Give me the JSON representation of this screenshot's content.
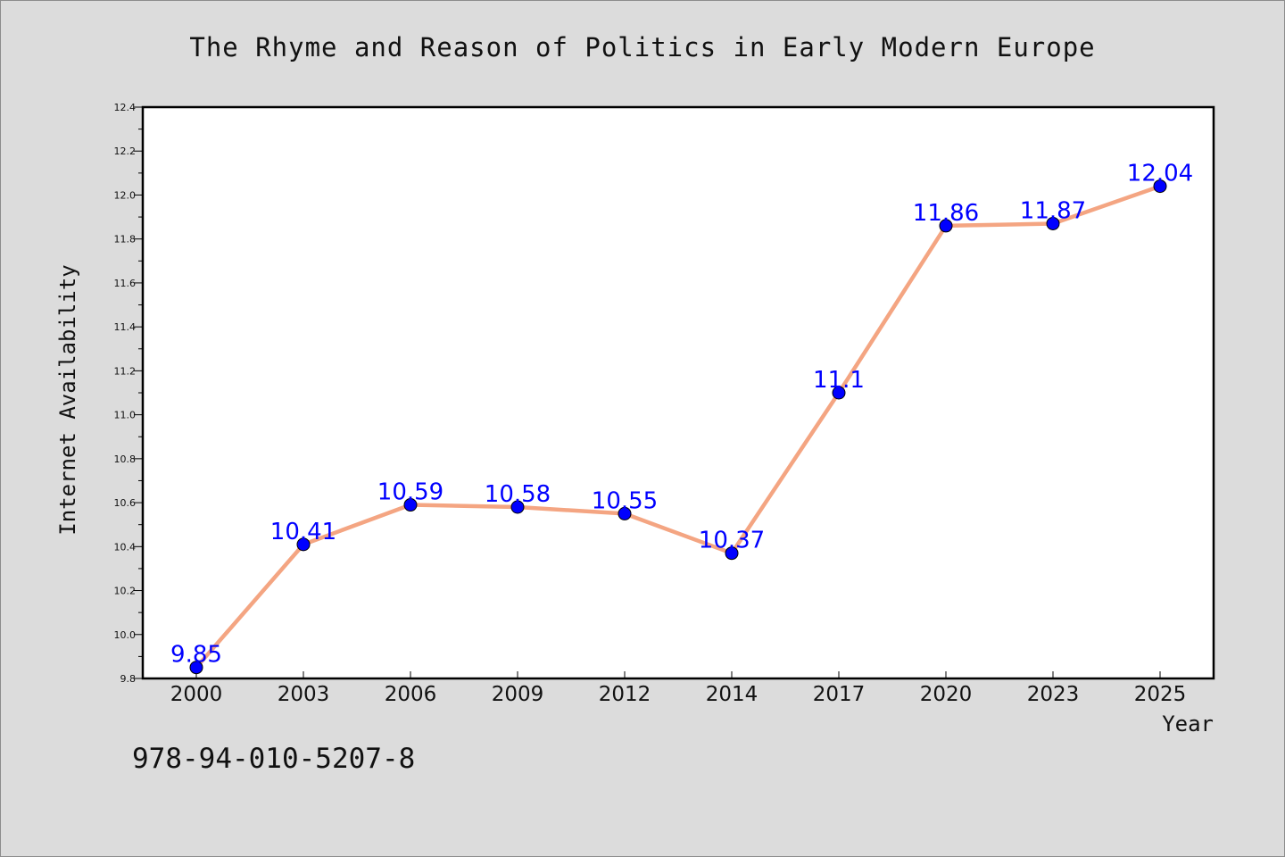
{
  "chart_data": {
    "type": "line",
    "title": "The Rhyme and Reason of Politics in Early Modern Europe",
    "xlabel": "Year",
    "ylabel": "Internet Availability",
    "categories": [
      "2000",
      "2003",
      "2006",
      "2009",
      "2012",
      "2014",
      "2017",
      "2020",
      "2023",
      "2025"
    ],
    "series": [
      {
        "values": [
          9.85,
          10.41,
          10.59,
          10.58,
          10.55,
          10.37,
          11.1,
          11.86,
          11.87,
          12.04
        ],
        "labels": [
          "9.85",
          "10.41",
          "10.59",
          "10.58",
          "10.55",
          "10.37",
          "11.1",
          "11.86",
          "11.87",
          "12.04"
        ],
        "line_color": "#f4a582",
        "marker_color": "#0000ff"
      }
    ],
    "ylim": [
      9.8,
      12.4
    ],
    "yticks": [
      "9.8",
      "10.0",
      "10.2",
      "10.4",
      "10.6",
      "10.8",
      "11.0",
      "11.2",
      "11.4",
      "11.6",
      "11.8",
      "12.0",
      "12.2",
      "12.4"
    ],
    "grid": false,
    "data_label_color": "#0000ff"
  },
  "footer": {
    "isbn": "978-94-010-5207-8"
  },
  "colors": {
    "background": "#dcdcdc",
    "plot_background": "#ffffff"
  }
}
